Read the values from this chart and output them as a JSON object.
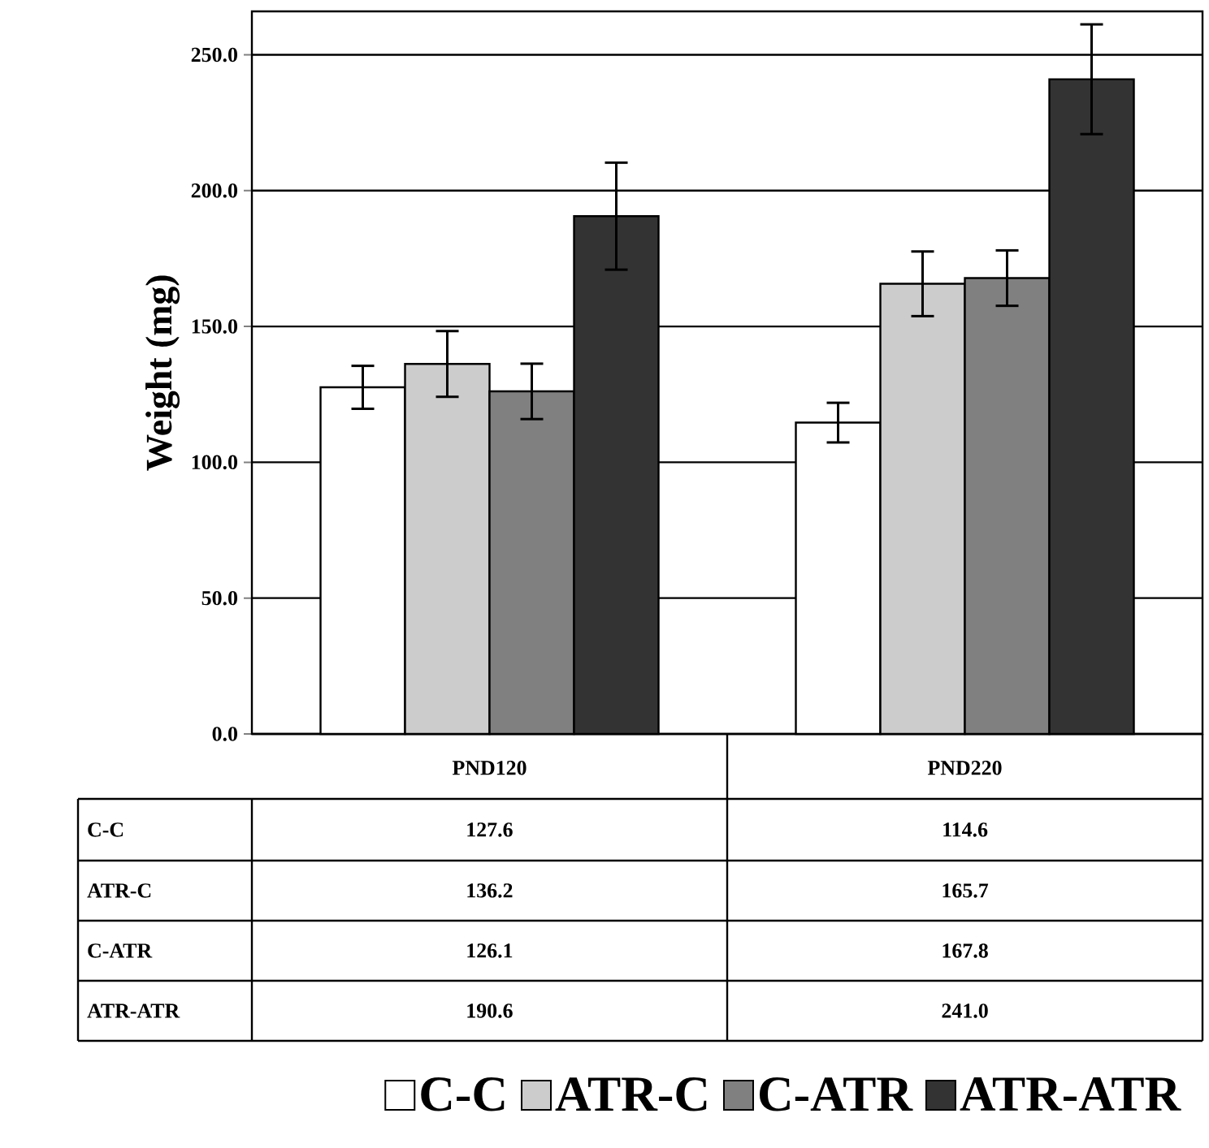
{
  "chart_data": {
    "type": "bar",
    "ylabel": "Weight (mg)",
    "categories": [
      "PND120",
      "PND220"
    ],
    "series": [
      {
        "name": "C-C",
        "color": "#ffffff",
        "values": [
          127.6,
          114.6
        ],
        "value_labels": [
          "127.6",
          "114.6"
        ],
        "errors": [
          7.9,
          7.3
        ]
      },
      {
        "name": "ATR-C",
        "color": "#cccccc",
        "values": [
          136.2,
          165.7
        ],
        "value_labels": [
          "136.2",
          "165.7"
        ],
        "errors": [
          12.1,
          11.9
        ]
      },
      {
        "name": "C-ATR",
        "color": "#808080",
        "values": [
          126.1,
          167.8
        ],
        "value_labels": [
          "126.1",
          "167.8"
        ],
        "errors": [
          10.2,
          10.2
        ]
      },
      {
        "name": "ATR-ATR",
        "color": "#333333",
        "values": [
          190.6,
          241.0
        ],
        "value_labels": [
          "190.6",
          "241.0"
        ],
        "errors": [
          19.7,
          20.2
        ]
      }
    ],
    "ylim": [
      0,
      266
    ],
    "yticks": [
      {
        "value": 0,
        "label": "0.0"
      },
      {
        "value": 50,
        "label": "50.0"
      },
      {
        "value": 100,
        "label": "100.0"
      },
      {
        "value": 150,
        "label": "150.0"
      },
      {
        "value": 200,
        "label": "200.0"
      },
      {
        "value": 250,
        "label": "250.0"
      }
    ],
    "grid": "y",
    "legend": "bottom"
  }
}
